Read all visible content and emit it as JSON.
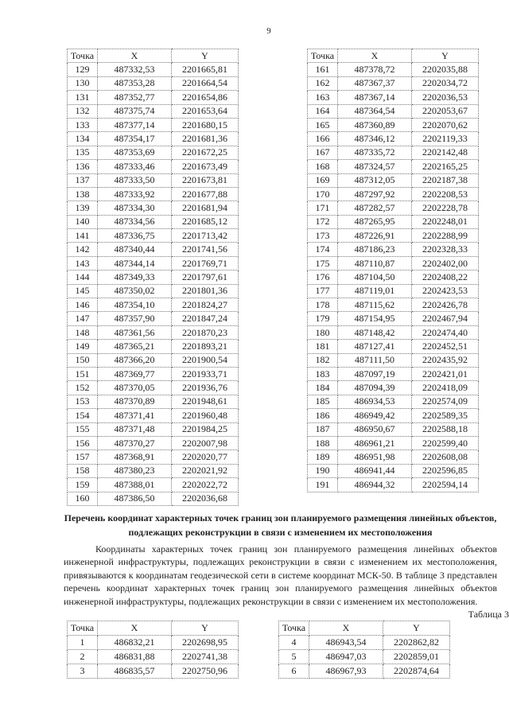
{
  "page_number": "9",
  "columns": [
    "Точка",
    "X",
    "Y"
  ],
  "table_left": [
    [
      "129",
      "487332,53",
      "2201665,81"
    ],
    [
      "130",
      "487353,28",
      "2201664,54"
    ],
    [
      "131",
      "487352,77",
      "2201654,86"
    ],
    [
      "132",
      "487375,74",
      "2201653,64"
    ],
    [
      "133",
      "487377,14",
      "2201680,15"
    ],
    [
      "134",
      "487354,17",
      "2201681,36"
    ],
    [
      "135",
      "487353,69",
      "2201672,25"
    ],
    [
      "136",
      "487333,46",
      "2201673,49"
    ],
    [
      "137",
      "487333,50",
      "2201673,81"
    ],
    [
      "138",
      "487333,92",
      "2201677,88"
    ],
    [
      "139",
      "487334,30",
      "2201681,94"
    ],
    [
      "140",
      "487334,56",
      "2201685,12"
    ],
    [
      "141",
      "487336,75",
      "2201713,42"
    ],
    [
      "142",
      "487340,44",
      "2201741,56"
    ],
    [
      "143",
      "487344,14",
      "2201769,71"
    ],
    [
      "144",
      "487349,33",
      "2201797,61"
    ],
    [
      "145",
      "487350,02",
      "2201801,36"
    ],
    [
      "146",
      "487354,10",
      "2201824,27"
    ],
    [
      "147",
      "487357,90",
      "2201847,24"
    ],
    [
      "148",
      "487361,56",
      "2201870,23"
    ],
    [
      "149",
      "487365,21",
      "2201893,21"
    ],
    [
      "150",
      "487366,20",
      "2201900,54"
    ],
    [
      "151",
      "487369,77",
      "2201933,71"
    ],
    [
      "152",
      "487370,05",
      "2201936,76"
    ],
    [
      "153",
      "487370,89",
      "2201948,61"
    ],
    [
      "154",
      "487371,41",
      "2201960,48"
    ],
    [
      "155",
      "487371,48",
      "2201984,25"
    ],
    [
      "156",
      "487370,27",
      "2202007,98"
    ],
    [
      "157",
      "487368,91",
      "2202020,77"
    ],
    [
      "158",
      "487380,23",
      "2202021,92"
    ],
    [
      "159",
      "487388,01",
      "2202022,72"
    ],
    [
      "160",
      "487386,50",
      "2202036,68"
    ]
  ],
  "table_right": [
    [
      "161",
      "487378,72",
      "2202035,88"
    ],
    [
      "162",
      "487367,37",
      "2202034,72"
    ],
    [
      "163",
      "487367,14",
      "2202036,53"
    ],
    [
      "164",
      "487364,54",
      "2202053,67"
    ],
    [
      "165",
      "487360,89",
      "2202070,62"
    ],
    [
      "166",
      "487346,12",
      "2202119,33"
    ],
    [
      "167",
      "487335,72",
      "2202142,48"
    ],
    [
      "168",
      "487324,57",
      "2202165,25"
    ],
    [
      "169",
      "487312,05",
      "2202187,38"
    ],
    [
      "170",
      "487297,92",
      "2202208,53"
    ],
    [
      "171",
      "487282,57",
      "2202228,78"
    ],
    [
      "172",
      "487265,95",
      "2202248,01"
    ],
    [
      "173",
      "487226,91",
      "2202288,99"
    ],
    [
      "174",
      "487186,23",
      "2202328,33"
    ],
    [
      "175",
      "487110,87",
      "2202402,00"
    ],
    [
      "176",
      "487104,50",
      "2202408,22"
    ],
    [
      "177",
      "487119,01",
      "2202423,53"
    ],
    [
      "178",
      "487115,62",
      "2202426,78"
    ],
    [
      "179",
      "487154,95",
      "2202467,94"
    ],
    [
      "180",
      "487148,42",
      "2202474,40"
    ],
    [
      "181",
      "487127,41",
      "2202452,51"
    ],
    [
      "182",
      "487111,50",
      "2202435,92"
    ],
    [
      "183",
      "487097,19",
      "2202421,01"
    ],
    [
      "184",
      "487094,39",
      "2202418,09"
    ],
    [
      "185",
      "486934,53",
      "2202574,09"
    ],
    [
      "186",
      "486949,42",
      "2202589,35"
    ],
    [
      "187",
      "486950,67",
      "2202588,18"
    ],
    [
      "188",
      "486961,21",
      "2202599,40"
    ],
    [
      "189",
      "486951,98",
      "2202608,08"
    ],
    [
      "190",
      "486941,44",
      "2202596,85"
    ],
    [
      "191",
      "486944,32",
      "2202594,14"
    ]
  ],
  "heading": "Перечень координат характерных точек границ зон планируемого размещения линейных объектов, подлежащих реконструкции в связи с изменением их местоположения",
  "paragraph": "Координаты характерных точек границ зон планируемого размещения линейных объектов инженерной инфраструктуры, подлежащих реконструкции в связи с изменением их местоположения, привязываются к координатам геодезической сети в системе координат МСК-50. В таблице 3 представлен перечень координат характерных точек границ зон планируемого размещения линейных объектов инженерной инфраструктуры, подлежащих реконструкции в связи с изменением их местоположения.",
  "table3_caption": "Таблица 3",
  "table3_left": [
    [
      "1",
      "486832,21",
      "2202698,95"
    ],
    [
      "2",
      "486831,88",
      "2202741,38"
    ],
    [
      "3",
      "486835,57",
      "2202750,96"
    ]
  ],
  "table3_right": [
    [
      "4",
      "486943,54",
      "2202862,82"
    ],
    [
      "5",
      "486947,03",
      "2202859,01"
    ],
    [
      "6",
      "486967,93",
      "2202874,64"
    ]
  ]
}
